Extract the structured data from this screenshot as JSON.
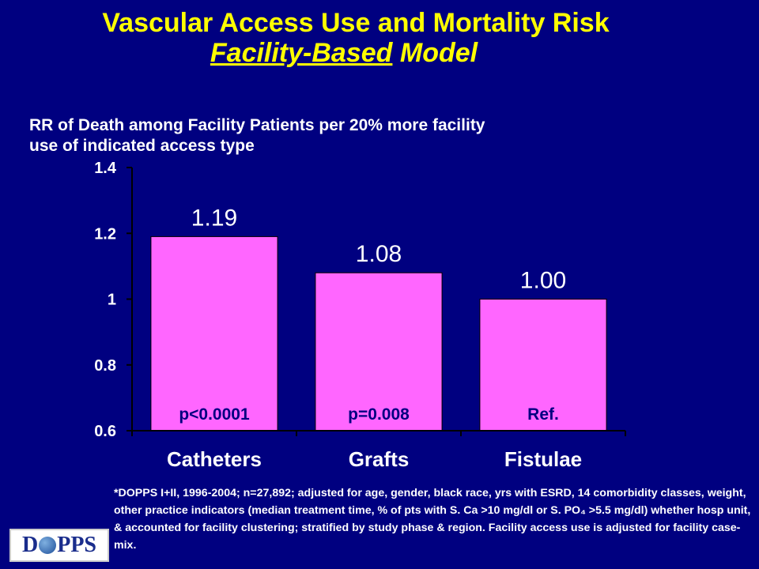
{
  "title": {
    "line1": "Vascular Access Use and Mortality Risk",
    "line2_underlined": "Facility-Based",
    "line2_rest": " Model"
  },
  "y_axis_label": "RR of Death among Facility Patients per 20% more facility use of indicated access type",
  "chart_data": {
    "type": "bar",
    "categories": [
      "Catheters",
      "Grafts",
      "Fistulae"
    ],
    "values": [
      1.19,
      1.08,
      1.0
    ],
    "value_labels": [
      "1.19",
      "1.08",
      "1.00"
    ],
    "p_values": [
      "p<0.0001",
      "p=0.008",
      "Ref."
    ],
    "ylim": [
      0.6,
      1.4
    ],
    "yticks": [
      0.6,
      0.8,
      1.0,
      1.2,
      1.4
    ],
    "ytick_labels": [
      "0.6",
      "0.8",
      "1",
      "1.2",
      "1.4"
    ],
    "ylabel": "RR of Death among Facility Patients per 20% more facility use of indicated access type",
    "xlabel": "",
    "grid": false,
    "legend": "none"
  },
  "footnote": "*DOPPS I+II, 1996-2004; n=27,892; adjusted for age, gender, black race, yrs with ESRD, 14 comorbidity classes, weight, other practice indicators (median treatment time, % of pts with S. Ca >10 mg/dl or S. PO₄ >5.5 mg/dl) whether hosp unit, & accounted for facility clustering; stratified by study phase & region.  Facility access use is adjusted for facility case-mix.",
  "logo": {
    "left": "D",
    "right": "PPS"
  },
  "colors": {
    "background": "#000080",
    "title": "#FFFF00",
    "bar_fill": "#FF66FF",
    "text": "#FFFFFF",
    "value_label": "#FFFFFF",
    "p_label": "#000080"
  }
}
